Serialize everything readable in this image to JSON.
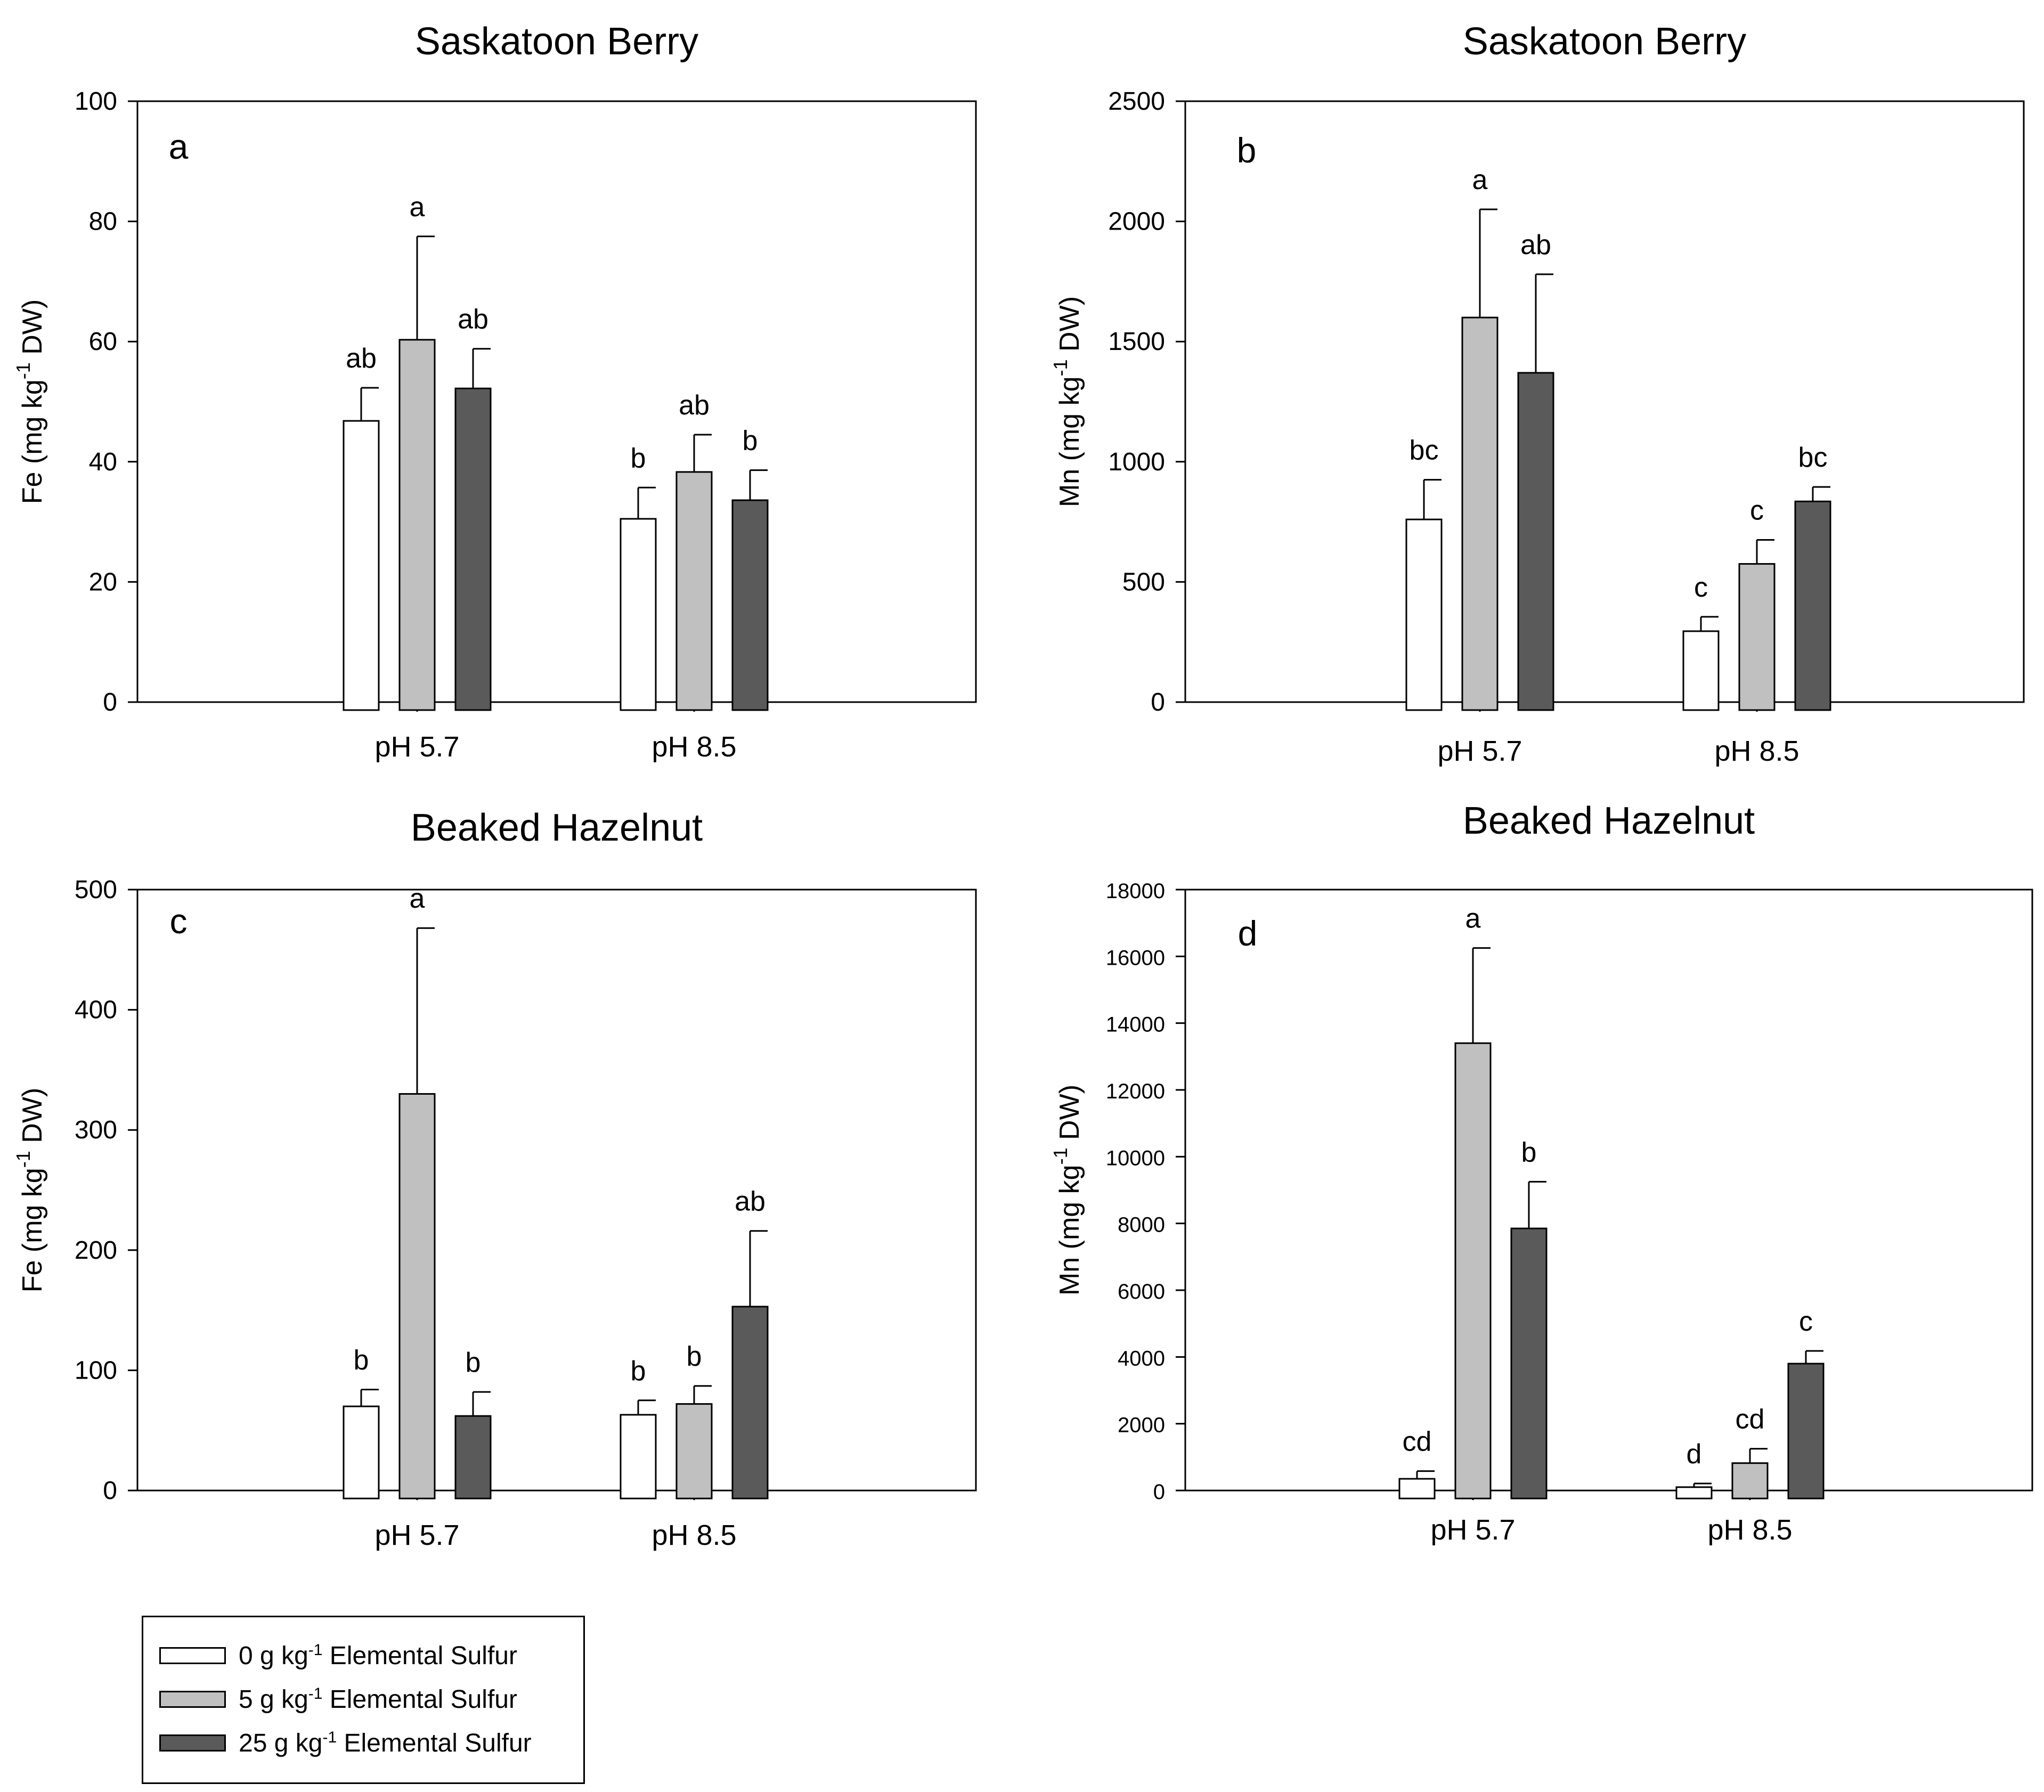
{
  "colors": {
    "s0": "#ffffff",
    "s5": "#c0c0c0",
    "s25": "#5a5a5a",
    "axis": "#000000"
  },
  "legend": {
    "items": [
      {
        "key": "s0",
        "prefix": "0 g kg",
        "sup": "-1",
        "suffix": " Elemental Sulfur"
      },
      {
        "key": "s5",
        "prefix": "5 g kg",
        "sup": "-1",
        "suffix": " Elemental Sulfur"
      },
      {
        "key": "s25",
        "prefix": "25 g kg",
        "sup": "-1",
        "suffix": " Elemental Sulfur"
      }
    ]
  },
  "chart_data": [
    {
      "type": "bar",
      "panel": "a",
      "title": "Saskatoon Berry",
      "ylabel_main": "Fe (mg kg",
      "ylabel_sup": "-1",
      "ylabel_end": " DW)",
      "ylim": [
        0,
        100
      ],
      "yticks": [
        0,
        20,
        40,
        60,
        80,
        100
      ],
      "categories": [
        "pH 5.7",
        "pH 8.5"
      ],
      "series": [
        {
          "name": "0 g kg-1 Elemental Sulfur",
          "key": "s0",
          "values": [
            46.8,
            30.5
          ],
          "errors": [
            5.5,
            5.2
          ],
          "letters": [
            "ab",
            "b"
          ]
        },
        {
          "name": "5 g kg-1 Elemental Sulfur",
          "key": "s5",
          "values": [
            60.3,
            38.3
          ],
          "errors": [
            17.2,
            6.2
          ],
          "letters": [
            "a",
            "ab"
          ]
        },
        {
          "name": "25 g kg-1 Elemental Sulfur",
          "key": "s25",
          "values": [
            52.2,
            33.6
          ],
          "errors": [
            6.6,
            5.0
          ],
          "letters": [
            "ab",
            "b"
          ]
        }
      ]
    },
    {
      "type": "bar",
      "panel": "b",
      "title": "Saskatoon Berry",
      "ylabel_main": "Mn (mg kg",
      "ylabel_sup": "-1",
      "ylabel_end": " DW)",
      "ylim": [
        0,
        2500
      ],
      "yticks": [
        0,
        500,
        1000,
        1500,
        2000,
        2500
      ],
      "categories": [
        "pH 5.7",
        "pH 8.5"
      ],
      "series": [
        {
          "name": "0 g kg-1 Elemental Sulfur",
          "key": "s0",
          "values": [
            760,
            295
          ],
          "errors": [
            165,
            60
          ],
          "letters": [
            "bc",
            "c"
          ]
        },
        {
          "name": "5 g kg-1 Elemental Sulfur",
          "key": "s5",
          "values": [
            1600,
            575
          ],
          "errors": [
            450,
            100
          ],
          "letters": [
            "a",
            "c"
          ]
        },
        {
          "name": "25 g kg-1 Elemental Sulfur",
          "key": "s25",
          "values": [
            1370,
            835
          ],
          "errors": [
            410,
            60
          ],
          "letters": [
            "ab",
            "bc"
          ]
        }
      ]
    },
    {
      "type": "bar",
      "panel": "c",
      "title": "Beaked Hazelnut",
      "ylabel_main": "Fe (mg kg",
      "ylabel_sup": "-1",
      "ylabel_end": " DW)",
      "ylim": [
        0,
        500
      ],
      "yticks": [
        0,
        100,
        200,
        300,
        400,
        500
      ],
      "categories": [
        "pH 5.7",
        "pH 8.5"
      ],
      "series": [
        {
          "name": "0 g kg-1 Elemental Sulfur",
          "key": "s0",
          "values": [
            70,
            63
          ],
          "errors": [
            14,
            12
          ],
          "letters": [
            "b",
            "b"
          ]
        },
        {
          "name": "5 g kg-1 Elemental Sulfur",
          "key": "s5",
          "values": [
            330,
            72
          ],
          "errors": [
            138,
            15
          ],
          "letters": [
            "a",
            "b"
          ]
        },
        {
          "name": "25 g kg-1 Elemental Sulfur",
          "key": "s25",
          "values": [
            62,
            153
          ],
          "errors": [
            20,
            63
          ],
          "letters": [
            "b",
            "ab"
          ]
        }
      ]
    },
    {
      "type": "bar",
      "panel": "d",
      "title": "Beaked Hazelnut",
      "ylabel_main": "Mn (mg kg",
      "ylabel_sup": "-1",
      "ylabel_end": " DW)",
      "ylim": [
        0,
        18000
      ],
      "yticks": [
        0,
        2000,
        4000,
        6000,
        8000,
        10000,
        12000,
        14000,
        16000,
        18000
      ],
      "categories": [
        "pH 5.7",
        "pH 8.5"
      ],
      "series": [
        {
          "name": "0 g kg-1 Elemental Sulfur",
          "key": "s0",
          "values": [
            350,
            100
          ],
          "errors": [
            230,
            110
          ],
          "letters": [
            "cd",
            "d"
          ]
        },
        {
          "name": "5 g kg-1 Elemental Sulfur",
          "key": "s5",
          "values": [
            13400,
            820
          ],
          "errors": [
            2850,
            430
          ],
          "letters": [
            "a",
            "cd"
          ]
        },
        {
          "name": "25 g kg-1 Elemental Sulfur",
          "key": "s25",
          "values": [
            7850,
            3800
          ],
          "errors": [
            1400,
            380
          ],
          "letters": [
            "b",
            "c"
          ]
        }
      ]
    }
  ]
}
